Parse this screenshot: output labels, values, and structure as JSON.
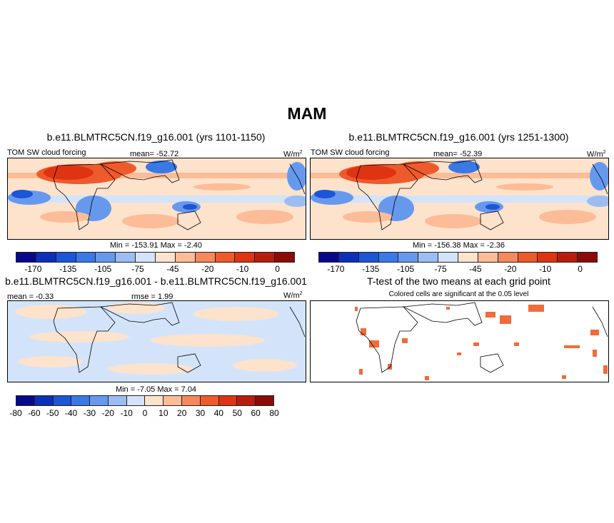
{
  "figure_title": "MAM",
  "panels": {
    "top_left": {
      "title": "b.e11.BLMTRC5CN.f19_g16.001 (yrs 1101-1150)",
      "variable": "TOM SW cloud forcing",
      "mean": "mean= -52.72",
      "units": "W/m",
      "units_sup": "2",
      "minmax": "Min = -153.91 Max =  -2.40"
    },
    "top_right": {
      "title": "b.e11.BLMTRC5CN.f19_g16.001 (yrs 1251-1300)",
      "variable": "TOM SW cloud forcing",
      "mean": "mean= -52.39",
      "units": "W/m",
      "units_sup": "2",
      "minmax": "Min = -156.38 Max =  -2.36"
    },
    "bottom_left": {
      "title": "b.e11.BLMTRC5CN.f19_g16.001 - b.e11.BLMTRC5CN.f19_g16.001",
      "mean": "mean =  -0.33",
      "rmse": "rmse =   1.99",
      "units": "W/m",
      "units_sup": "2",
      "minmax": "Min =  -7.05 Max =   7.04"
    },
    "bottom_right": {
      "title": "T-test of the two means at each grid point",
      "subtitle": "Colored cells are significant at the 0.05 level"
    }
  },
  "colorbars": {
    "absolute": {
      "colors": [
        "#08088c",
        "#0c2fb8",
        "#1c55d6",
        "#3a78e6",
        "#6699ee",
        "#9dbcf2",
        "#d3e4fa",
        "#fde2cc",
        "#fbbc97",
        "#f5885c",
        "#ef5a2c",
        "#de3412",
        "#b81c0c",
        "#8c0b06"
      ],
      "labels": [
        "-170",
        "-135",
        "-105",
        "-75",
        "-45",
        "-20",
        "-10",
        "0"
      ]
    },
    "difference": {
      "colors": [
        "#08088c",
        "#0c2fb8",
        "#1c55d6",
        "#3a78e6",
        "#6699ee",
        "#9dbcf2",
        "#d3e4fa",
        "#fde2cc",
        "#fbbc97",
        "#f5885c",
        "#ef5a2c",
        "#de3412",
        "#b81c0c",
        "#8c0b06"
      ],
      "labels": [
        "-80",
        "-60",
        "-50",
        "-40",
        "-30",
        "-20",
        "-10",
        "0",
        "10",
        "20",
        "30",
        "40",
        "50",
        "60",
        "80"
      ]
    }
  },
  "colors": {
    "significant": "#f26b3a"
  }
}
